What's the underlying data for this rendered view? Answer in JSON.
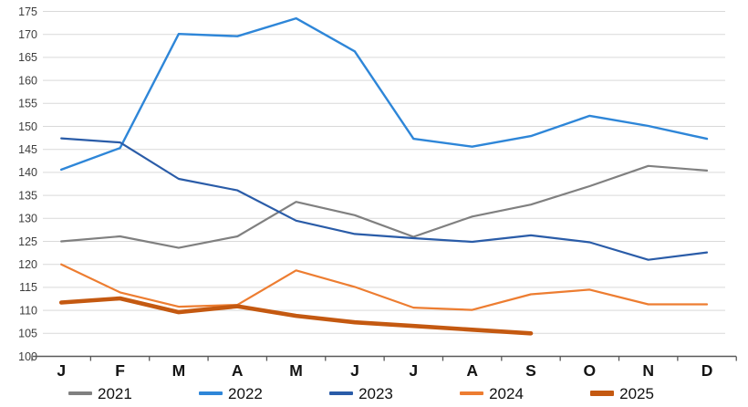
{
  "chart_data": {
    "type": "line",
    "title": "",
    "xlabel": "",
    "ylabel": "",
    "x_labels": [
      "J",
      "F",
      "M",
      "A",
      "M",
      "J",
      "J",
      "A",
      "S",
      "O",
      "N",
      "D"
    ],
    "y_axis": {
      "min": 100,
      "max": 175,
      "step": 5
    },
    "grid": true,
    "legend_position": "bottom",
    "colors": {
      "background": "#ffffff",
      "gridline": "#d9d9d9",
      "axis_line": "#595959",
      "y_tick_label": "#3d3d3d",
      "x_month_label": "#141414"
    },
    "series": [
      {
        "name": "2021",
        "color": "#808080",
        "width": 2.2,
        "values": [
          125.0,
          126.1,
          123.6,
          126.1,
          133.6,
          130.7,
          126.0,
          130.4,
          133.0,
          137.0,
          141.4,
          140.4
        ]
      },
      {
        "name": "2022",
        "color": "#2e86d8",
        "width": 2.4,
        "values": [
          140.6,
          145.3,
          170.1,
          169.6,
          173.5,
          166.3,
          147.3,
          145.6,
          147.9,
          152.3,
          150.1,
          147.3
        ]
      },
      {
        "name": "2023",
        "color": "#2a5ca8",
        "width": 2.2,
        "values": [
          147.4,
          146.5,
          138.6,
          136.1,
          129.5,
          126.6,
          125.7,
          124.9,
          126.3,
          124.8,
          121.0,
          122.6
        ]
      },
      {
        "name": "2024",
        "color": "#ed7d31",
        "width": 2.2,
        "values": [
          120.0,
          113.9,
          110.8,
          111.2,
          118.7,
          115.1,
          110.6,
          110.1,
          113.5,
          114.5,
          111.3,
          111.3
        ]
      },
      {
        "name": "2025",
        "color": "#c45911",
        "width": 4.6,
        "values": [
          111.7,
          112.6,
          109.6,
          110.9,
          108.8,
          107.4,
          106.6,
          105.8,
          105.0
        ]
      }
    ]
  },
  "legend": {
    "items": [
      "2021",
      "2022",
      "2023",
      "2024",
      "2025"
    ]
  }
}
